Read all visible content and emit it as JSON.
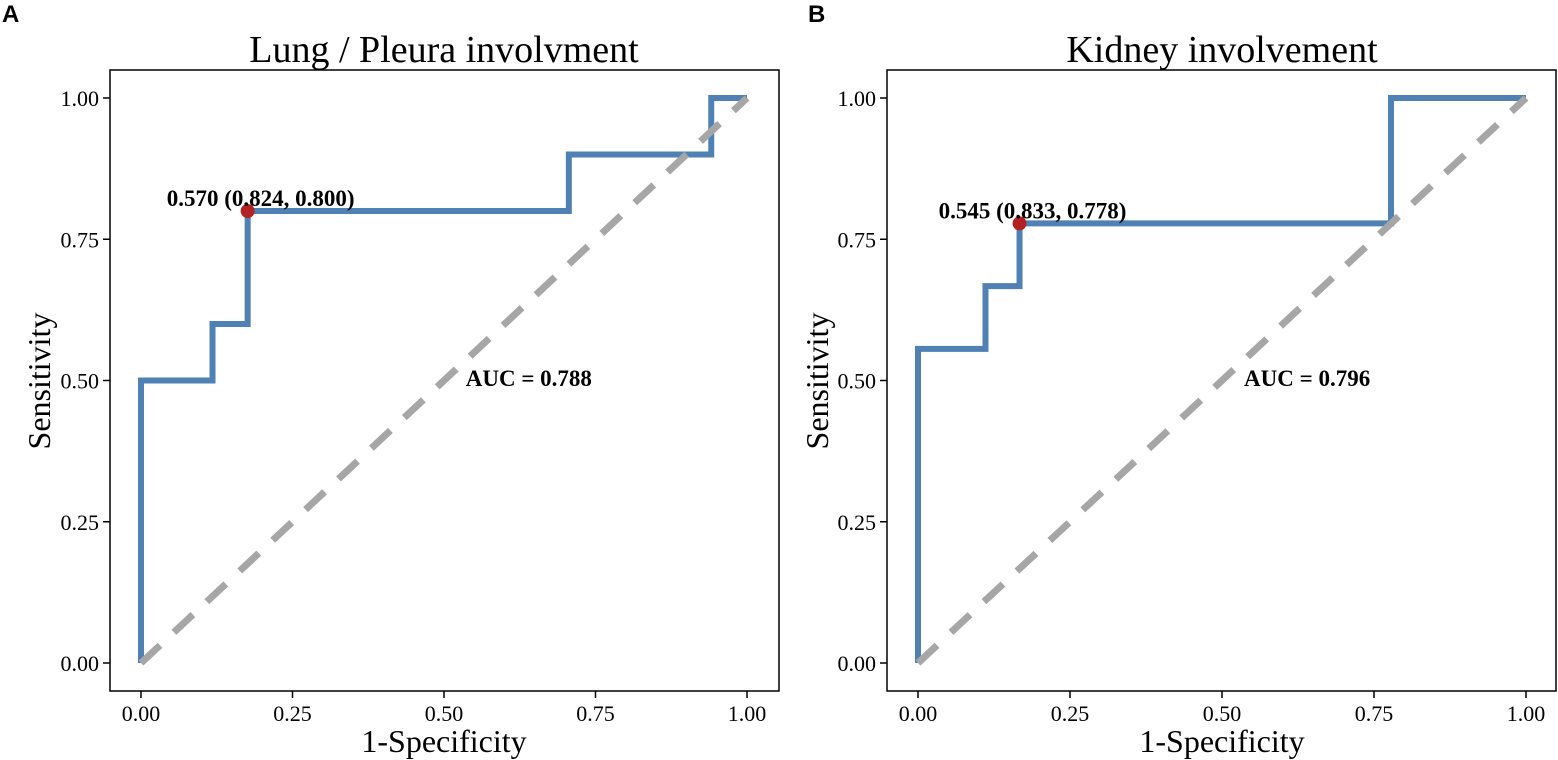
{
  "colors": {
    "roc_line": "#4f81b4",
    "reference_line": "#a6a6a6",
    "cutoff_point": "#b22222",
    "axis": "#000000"
  },
  "chart_data": [
    {
      "panel_label": "A",
      "type": "line",
      "title": "Lung / Pleura involvment",
      "xlabel": "1-Specificity",
      "ylabel": "Sensitivity",
      "xlim": [
        0,
        1
      ],
      "ylim": [
        0,
        1
      ],
      "xticks": [
        "0.00",
        "0.25",
        "0.50",
        "0.75",
        "1.00"
      ],
      "yticks": [
        "0.00",
        "0.25",
        "0.50",
        "0.75",
        "1.00"
      ],
      "grid": false,
      "series": [
        {
          "name": "ROC",
          "x": [
            0,
            0,
            0.118,
            0.118,
            0.176,
            0.176,
            0.706,
            0.706,
            0.941,
            0.941,
            1.0
          ],
          "y": [
            0,
            0.5,
            0.5,
            0.6,
            0.6,
            0.8,
            0.8,
            0.9,
            0.9,
            1.0,
            1.0
          ]
        },
        {
          "name": "reference",
          "x": [
            0,
            1
          ],
          "y": [
            0,
            1
          ],
          "style": "dashed"
        }
      ],
      "cutoff_point": {
        "x": 0.176,
        "y": 0.8,
        "label": "0.570 (0.824, 0.800)"
      },
      "auc_label": "AUC = 0.788",
      "auc_pos": {
        "x": 0.64,
        "y": 0.49
      }
    },
    {
      "panel_label": "B",
      "type": "line",
      "title": "Kidney involvement",
      "xlabel": "1-Specificity",
      "ylabel": "Sensitivity",
      "xlim": [
        0,
        1
      ],
      "ylim": [
        0,
        1
      ],
      "xticks": [
        "0.00",
        "0.25",
        "0.50",
        "0.75",
        "1.00"
      ],
      "yticks": [
        "0.00",
        "0.25",
        "0.50",
        "0.75",
        "1.00"
      ],
      "grid": false,
      "series": [
        {
          "name": "ROC",
          "x": [
            0,
            0,
            0.111,
            0.111,
            0.167,
            0.167,
            0.778,
            0.778,
            1.0
          ],
          "y": [
            0,
            0.556,
            0.556,
            0.667,
            0.667,
            0.778,
            0.778,
            1.0,
            1.0
          ]
        },
        {
          "name": "reference",
          "x": [
            0,
            1
          ],
          "y": [
            0,
            1
          ],
          "style": "dashed"
        }
      ],
      "cutoff_point": {
        "x": 0.167,
        "y": 0.778,
        "label": "0.545 (0.833, 0.778)"
      },
      "auc_label": "AUC = 0.796",
      "auc_pos": {
        "x": 0.64,
        "y": 0.49
      }
    }
  ]
}
